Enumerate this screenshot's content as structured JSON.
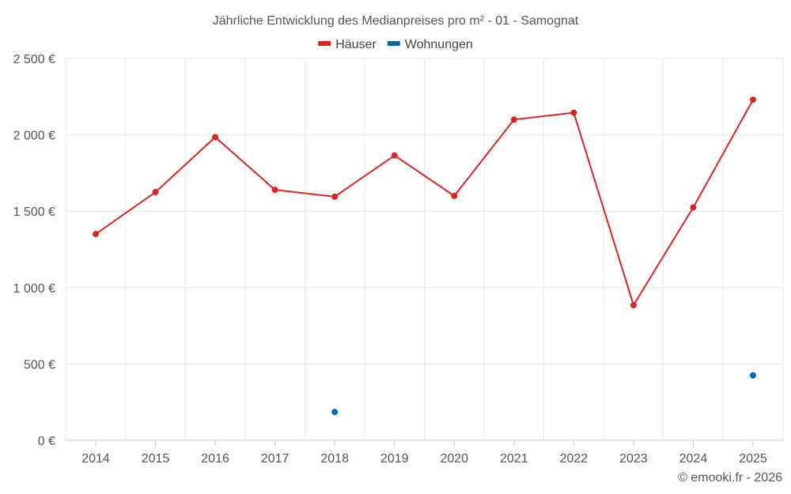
{
  "chart_data": {
    "type": "line",
    "title": "Jährliche Entwicklung des Medianpreises pro m² - 01 - Samognat",
    "categories": [
      "2014",
      "2015",
      "2016",
      "2017",
      "2018",
      "2019",
      "2020",
      "2021",
      "2022",
      "2023",
      "2024",
      "2025"
    ],
    "series": [
      {
        "name": "Häuser",
        "color": "#d62728",
        "values": [
          1350,
          1625,
          1985,
          1640,
          1595,
          1865,
          1600,
          2100,
          2145,
          885,
          1525,
          2230
        ]
      },
      {
        "name": "Wohnungen",
        "color": "#0a68a8",
        "values": [
          null,
          null,
          null,
          null,
          185,
          null,
          null,
          null,
          null,
          null,
          null,
          425
        ]
      }
    ],
    "ylim": [
      0,
      2500
    ],
    "yticks": [
      0,
      500,
      1000,
      1500,
      2000,
      2500
    ],
    "ytick_labels": [
      "0 €",
      "500 €",
      "1 000 €",
      "1 500 €",
      "2 000 €",
      "2 500 €"
    ],
    "xlabel": "",
    "ylabel": "",
    "grid": true,
    "legend_position": "top-center"
  },
  "credit": "© emooki.fr - 2026"
}
